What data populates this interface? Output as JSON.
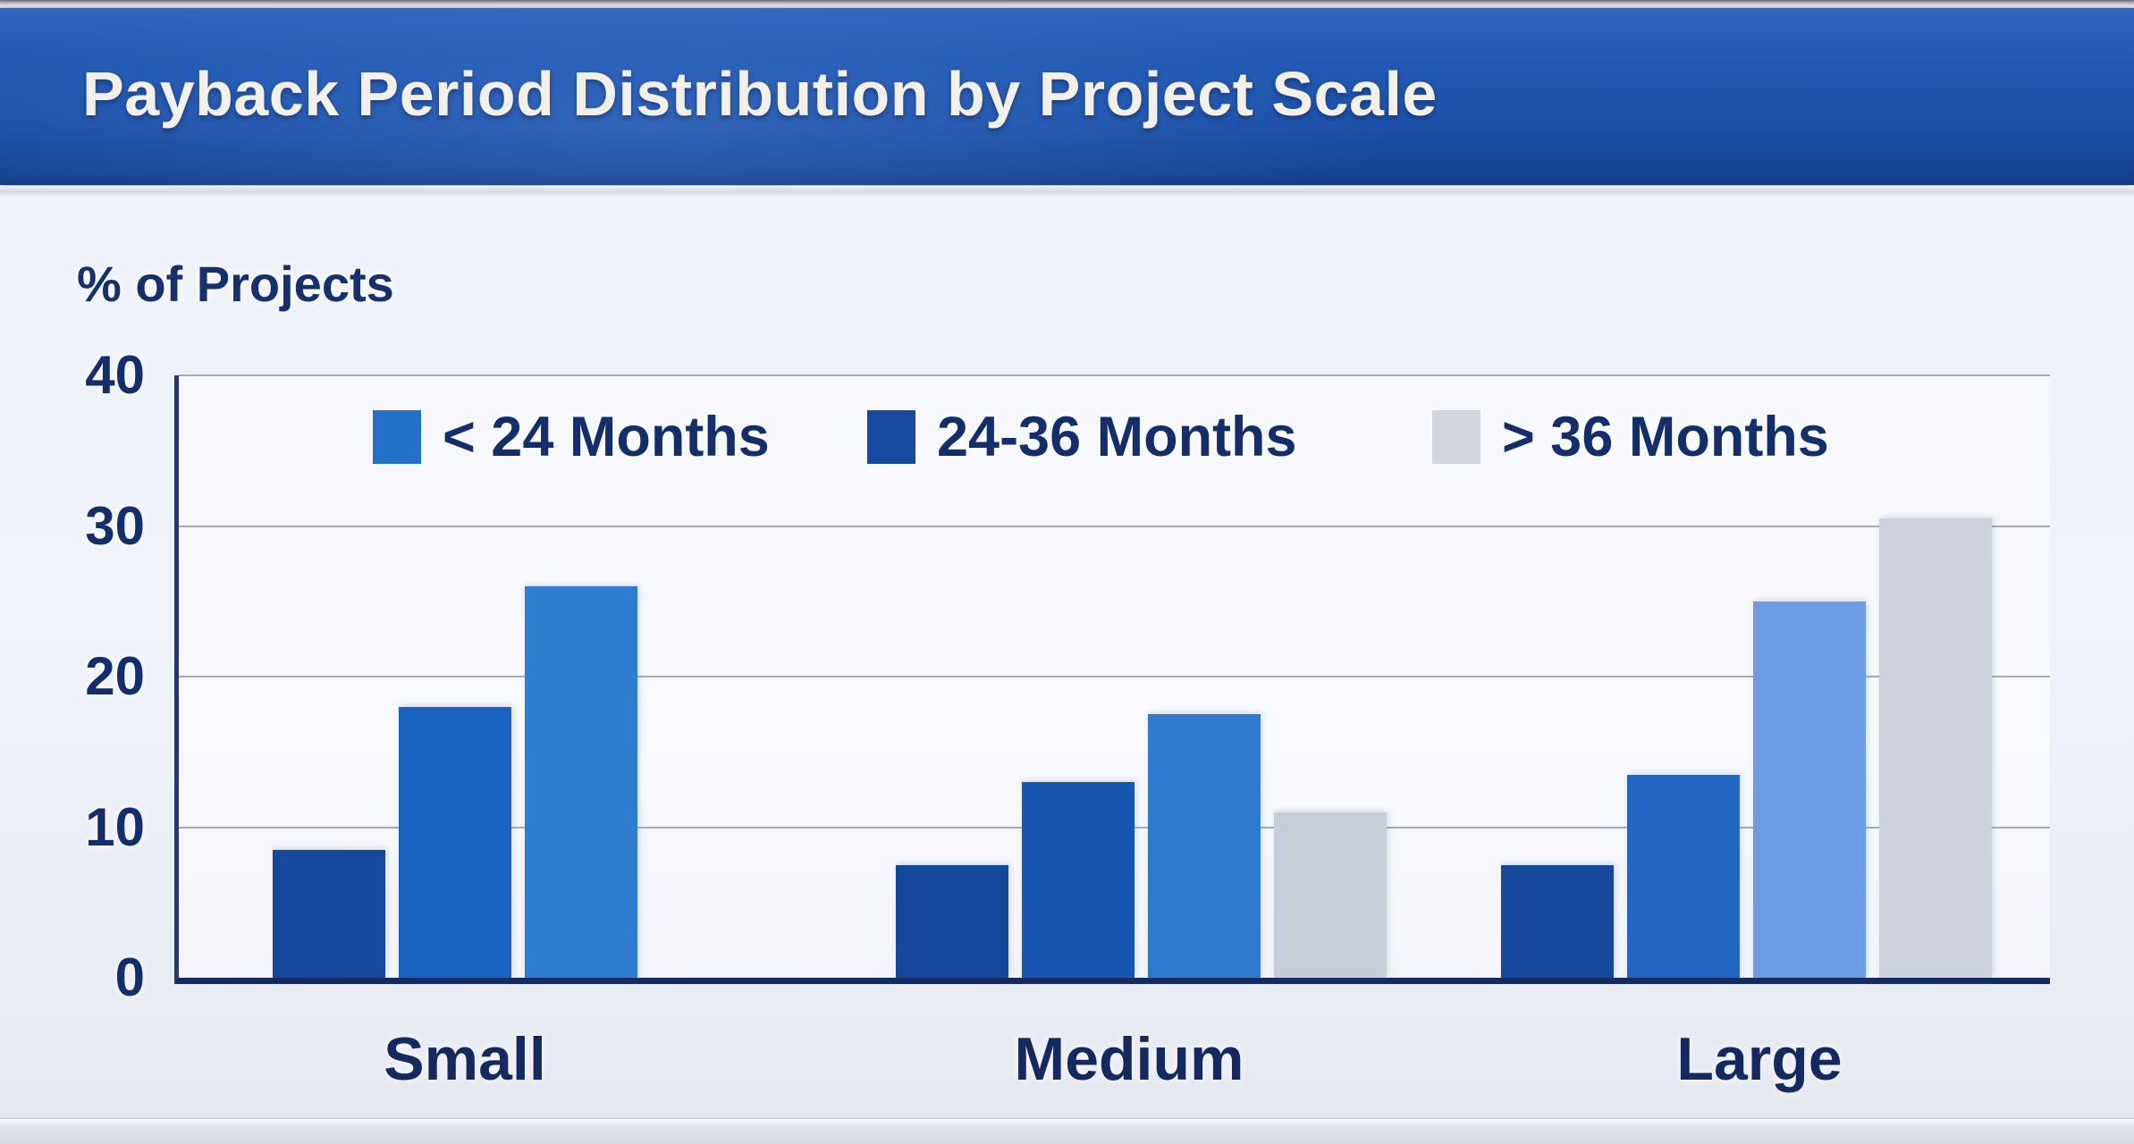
{
  "header": {
    "title": "Payback Period Distribution by Project Scale"
  },
  "chart_data": {
    "type": "bar",
    "title": "Payback Period Distribution by Project Scale",
    "ylabel": "% of Projects",
    "xlabel": "",
    "ylim": [
      0,
      40
    ],
    "yticks": [
      0,
      10,
      20,
      30,
      40
    ],
    "grid": true,
    "legend_position": "top-inside",
    "legend": [
      {
        "label": "< 24 Months",
        "color": "#2270c8"
      },
      {
        "label": "24-36 Months",
        "color": "#16499f"
      },
      {
        "label": "> 36 Months",
        "color": "#d4d6de"
      }
    ],
    "categories": [
      "Small",
      "Medium",
      "Large"
    ],
    "groups": [
      {
        "label": "Small",
        "bars": [
          {
            "value": 8.5,
            "color": "#16489c"
          },
          {
            "value": 18,
            "color": "#1b63c0"
          },
          {
            "value": 26,
            "color": "#2f7dd2"
          }
        ]
      },
      {
        "label": "Medium",
        "bars": [
          {
            "value": 7.5,
            "color": "#15479b"
          },
          {
            "value": 13,
            "color": "#1757b1"
          },
          {
            "value": 17.5,
            "color": "#2e7ace"
          },
          {
            "value": 11,
            "color": "#c7cdd9"
          }
        ]
      },
      {
        "label": "Large",
        "bars": [
          {
            "value": 7.5,
            "color": "#15479b"
          },
          {
            "value": 13.5,
            "color": "#2066c2"
          },
          {
            "value": 25,
            "color": "#6d9ce5"
          },
          {
            "value": 30.5,
            "color": "#ccd1db"
          }
        ]
      }
    ]
  }
}
